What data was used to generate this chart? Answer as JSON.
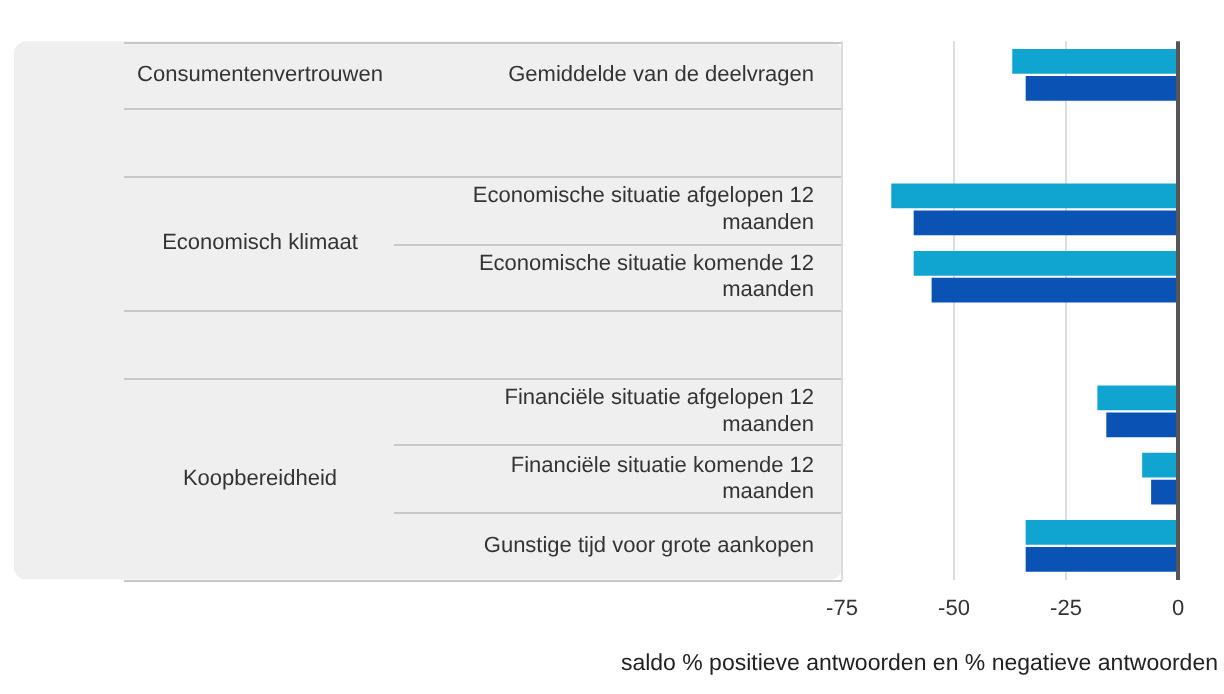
{
  "chart_data": {
    "type": "bar",
    "orientation": "horizontal",
    "categories": [
      "Gemiddelde van de deelvragen",
      null,
      "Economische situatie afgelopen 12 maanden",
      "Economische situatie komende 12 maanden",
      null,
      "Financiële situatie afgelopen 12 maanden",
      "Financiële situatie komende 12 maanden",
      "Gunstige tijd voor grote aankopen"
    ],
    "series": [
      {
        "color": "#10a5d0",
        "values": [
          -37,
          null,
          -64,
          -59,
          null,
          -18,
          -8,
          -34
        ]
      },
      {
        "color": "#0b52b5",
        "values": [
          -34,
          null,
          -59,
          -55,
          null,
          -16,
          -6,
          -34
        ]
      }
    ],
    "xlim": [
      -75,
      0
    ],
    "xticks": [
      -75,
      -50,
      -25,
      0
    ],
    "xlabel": "saldo % positieve antwoorden en % negatieve antwoorden",
    "annotations": [
      "Consumentenvertrouwen",
      "Economisch klimaat",
      "Koopbereidheid"
    ],
    "grid": "x",
    "legend": false
  }
}
